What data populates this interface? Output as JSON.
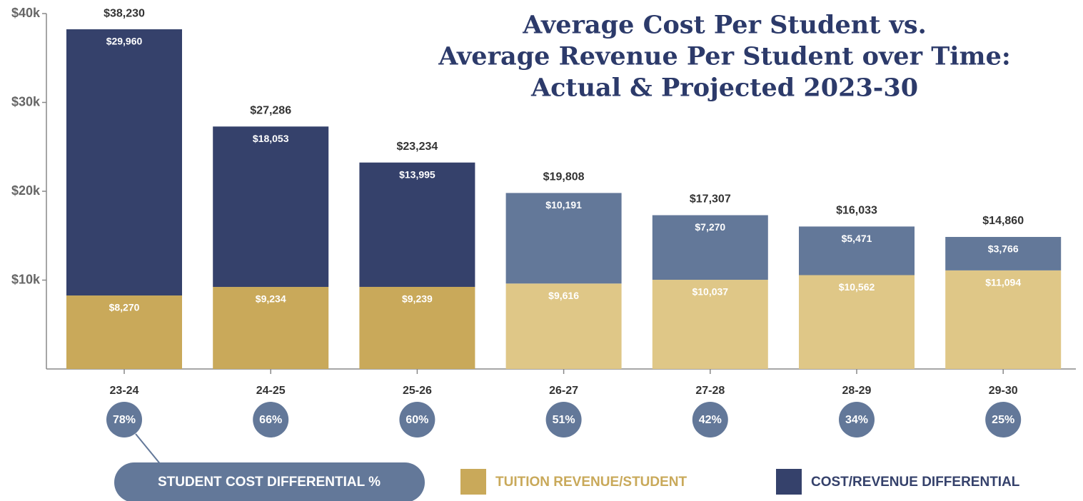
{
  "chart_data": {
    "type": "bar",
    "stacked": true,
    "title": [
      "Average Cost Per Student vs.",
      "Average Revenue Per Student over Time:",
      "Actual & Projected 2023-30"
    ],
    "categories": [
      "23-24",
      "24-25",
      "25-26",
      "26-27",
      "27-28",
      "28-29",
      "29-30"
    ],
    "series": [
      {
        "name": "TUITION REVENUE/STUDENT",
        "colors": [
          "#c9a95a",
          "#c9a95a",
          "#c9a95a",
          "#dfc787",
          "#dfc787",
          "#dfc787",
          "#dfc787"
        ],
        "values": [
          8270,
          9234,
          9239,
          9616,
          10037,
          10562,
          11094
        ],
        "value_labels": [
          "$8,270",
          "$9,234",
          "$9,239",
          "$9,616",
          "$10,037",
          "$10,562",
          "$11,094"
        ]
      },
      {
        "name": "COST/REVENUE DIFFERENTIAL",
        "colors": [
          "#35416b",
          "#35416b",
          "#35416b",
          "#637899",
          "#637899",
          "#637899",
          "#637899"
        ],
        "values": [
          29960,
          18053,
          13995,
          10191,
          7270,
          5471,
          3766
        ],
        "value_labels": [
          "$29,960",
          "$18,053",
          "$13,995",
          "$10,191",
          "$7,270",
          "$5,471",
          "$3,766"
        ]
      }
    ],
    "totals": [
      38230,
      27286,
      23234,
      19808,
      17307,
      16033,
      14860
    ],
    "totals_labels": [
      "$38,230",
      "$27,286",
      "$23,234",
      "$19,808",
      "$17,307",
      "$16,033",
      "$14,860"
    ],
    "differential_pct": {
      "name": "STUDENT COST DIFFERENTIAL %",
      "color": "#637899",
      "values": [
        78,
        66,
        60,
        51,
        42,
        34,
        25
      ],
      "value_labels": [
        "78%",
        "66%",
        "60%",
        "51%",
        "42%",
        "34%",
        "25%"
      ]
    },
    "ylim": [
      0,
      40000
    ],
    "yticks": [
      {
        "value": 10000,
        "label": "$10k"
      },
      {
        "value": 20000,
        "label": "$20k"
      },
      {
        "value": 30000,
        "label": "$30k"
      },
      {
        "value": 40000,
        "label": "$40k"
      }
    ]
  }
}
